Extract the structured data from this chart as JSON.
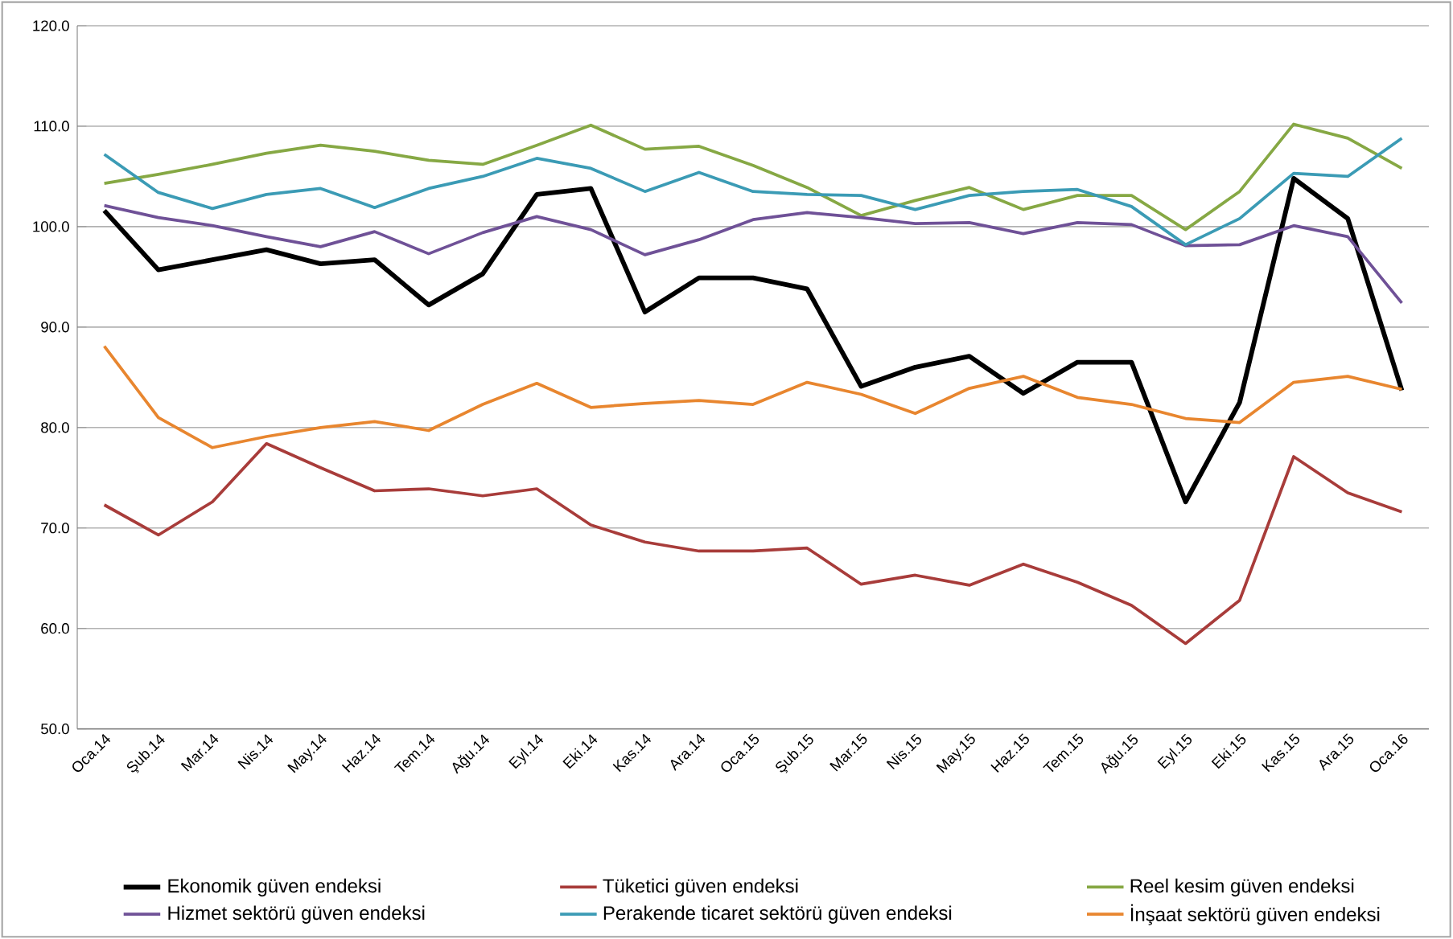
{
  "chart_data": {
    "type": "line",
    "categories": [
      "Oca.14",
      "Şub.14",
      "Mar.14",
      "Nis.14",
      "May.14",
      "Haz.14",
      "Tem.14",
      "Ağu.14",
      "Eyl.14",
      "Eki.14",
      "Kas.14",
      "Ara.14",
      "Oca.15",
      "Şub.15",
      "Mar.15",
      "Nis.15",
      "May.15",
      "Haz.15",
      "Tem.15",
      "Ağu.15",
      "Eyl.15",
      "Eki.15",
      "Kas.15",
      "Ara.15",
      "Oca.16"
    ],
    "series": [
      {
        "name": "Ekonomik güven endeksi",
        "color": "#000000",
        "values": [
          101.6,
          95.7,
          96.7,
          97.7,
          96.3,
          96.7,
          92.2,
          95.3,
          103.2,
          103.8,
          91.5,
          94.9,
          94.9,
          93.8,
          84.1,
          86.0,
          87.1,
          83.4,
          86.5,
          86.5,
          72.6,
          82.5,
          104.8,
          100.8,
          83.7
        ]
      },
      {
        "name": "Tüketici güven endeksi",
        "color": "#a83c3a",
        "values": [
          72.3,
          69.3,
          72.6,
          78.4,
          76.0,
          73.7,
          73.9,
          73.2,
          73.9,
          70.3,
          68.6,
          67.7,
          67.7,
          68.0,
          64.4,
          65.3,
          64.3,
          66.4,
          64.6,
          62.3,
          58.5,
          62.8,
          77.1,
          73.5,
          71.6
        ]
      },
      {
        "name": "Reel kesim güven endeksi",
        "color": "#86a844",
        "values": [
          104.3,
          105.2,
          106.2,
          107.3,
          108.1,
          107.5,
          106.6,
          106.2,
          108.1,
          110.1,
          107.7,
          108.0,
          106.1,
          103.9,
          101.1,
          102.6,
          103.9,
          101.7,
          103.1,
          103.1,
          99.7,
          103.5,
          110.2,
          108.8,
          105.8
        ]
      },
      {
        "name": "Hizmet sektörü güven endeksi",
        "color": "#6f5197",
        "values": [
          102.1,
          100.9,
          100.1,
          99.0,
          98.0,
          99.5,
          97.3,
          99.4,
          101.0,
          99.7,
          97.2,
          98.7,
          100.7,
          101.4,
          100.9,
          100.3,
          100.4,
          99.3,
          100.4,
          100.2,
          98.1,
          98.2,
          100.1,
          99.0,
          92.4
        ]
      },
      {
        "name": "Perakende ticaret sektörü güven endeksi",
        "color": "#3b9bb5",
        "values": [
          107.2,
          103.4,
          101.8,
          103.2,
          103.8,
          101.9,
          103.8,
          105.0,
          106.8,
          105.8,
          103.5,
          105.4,
          103.5,
          103.2,
          103.1,
          101.7,
          103.1,
          103.5,
          103.7,
          102.0,
          98.2,
          100.8,
          105.3,
          105.0,
          108.8
        ]
      },
      {
        "name": "İnşaat sektörü güven endeksi",
        "color": "#e8862f",
        "values": [
          88.1,
          81.0,
          78.0,
          79.1,
          80.0,
          80.6,
          79.7,
          82.3,
          84.4,
          82.0,
          82.4,
          82.7,
          82.3,
          84.5,
          83.3,
          81.4,
          83.9,
          85.1,
          83.0,
          82.3,
          80.9,
          80.5,
          84.5,
          85.1,
          83.8
        ]
      }
    ],
    "ylim": [
      50,
      120
    ],
    "yticks": [
      {
        "value": 50,
        "label": "50.0"
      },
      {
        "value": 60,
        "label": "60.0"
      },
      {
        "value": 70,
        "label": "70.0"
      },
      {
        "value": 80,
        "label": "80.0"
      },
      {
        "value": 90,
        "label": "90.0"
      },
      {
        "value": 100,
        "label": "100.0"
      },
      {
        "value": 110,
        "label": "110.0"
      },
      {
        "value": 120,
        "label": "120.0"
      }
    ],
    "grid": "y",
    "legend": "bottom",
    "marker": "none",
    "line_style": "solid"
  }
}
